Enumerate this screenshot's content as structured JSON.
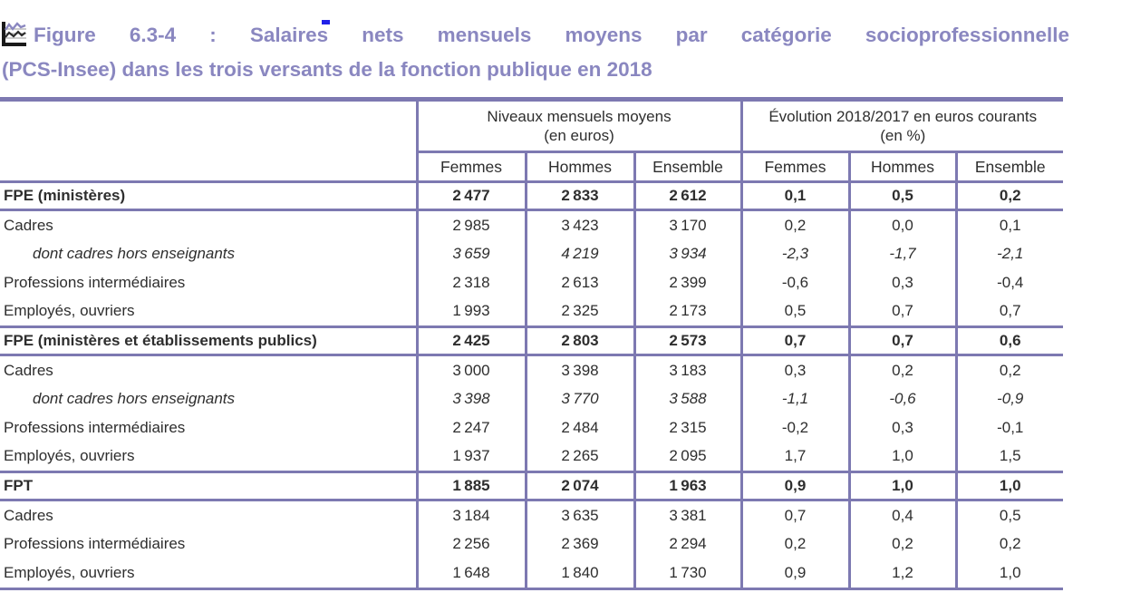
{
  "colors": {
    "border_purple": "#7d79b1",
    "title_purple": "#8a87c0",
    "text_dark": "#2e2e2e",
    "artifact_blue": "#2020e8"
  },
  "figure": {
    "icon": "line-chart-icon",
    "label": "Figure 6.3-4 :",
    "title_line1": "Salaires nets mensuels moyens par catégorie socioprofessionnelle",
    "title_line2": "(PCS-Insee) dans les trois versants de la fonction publique en 2018"
  },
  "table": {
    "col_groups": [
      {
        "title": "Niveaux mensuels moyens",
        "unit": "(en euros)"
      },
      {
        "title": "Évolution 2018/2017 en euros courants",
        "unit": "(en %)"
      }
    ],
    "sub_headers": [
      "Femmes",
      "Hommes",
      "Ensemble",
      "Femmes",
      "Hommes",
      "Ensemble"
    ],
    "rows": [
      {
        "label": "FPE (ministères)",
        "style": "section",
        "values": [
          "2 477",
          "2 833",
          "2 612",
          "0,1",
          "0,5",
          "0,2"
        ]
      },
      {
        "label": "Cadres",
        "style": "normal",
        "values": [
          "2 985",
          "3 423",
          "3 170",
          "0,2",
          "0,0",
          "0,1"
        ]
      },
      {
        "label": "dont cadres hors enseignants",
        "style": "italic",
        "values": [
          "3 659",
          "4 219",
          "3 934",
          "-2,3",
          "-1,7",
          "-2,1"
        ]
      },
      {
        "label": "Professions intermédiaires",
        "style": "normal",
        "values": [
          "2 318",
          "2 613",
          "2 399",
          "-0,6",
          "0,3",
          "-0,4"
        ]
      },
      {
        "label": "Employés, ouvriers",
        "style": "normal",
        "values": [
          "1 993",
          "2 325",
          "2 173",
          "0,5",
          "0,7",
          "0,7"
        ]
      },
      {
        "label": "FPE (ministères et établissements publics)",
        "style": "section",
        "values": [
          "2 425",
          "2 803",
          "2 573",
          "0,7",
          "0,7",
          "0,6"
        ]
      },
      {
        "label": "Cadres",
        "style": "normal",
        "values": [
          "3 000",
          "3 398",
          "3 183",
          "0,3",
          "0,2",
          "0,2"
        ]
      },
      {
        "label": "dont cadres hors enseignants",
        "style": "italic",
        "values": [
          "3 398",
          "3 770",
          "3 588",
          "-1,1",
          "-0,6",
          "-0,9"
        ]
      },
      {
        "label": "Professions intermédiaires",
        "style": "normal",
        "values": [
          "2 247",
          "2 484",
          "2 315",
          "-0,2",
          "0,3",
          "-0,1"
        ]
      },
      {
        "label": "Employés, ouvriers",
        "style": "normal",
        "values": [
          "1 937",
          "2 265",
          "2 095",
          "1,7",
          "1,0",
          "1,5"
        ]
      },
      {
        "label": "FPT",
        "style": "section",
        "values": [
          "1 885",
          "2 074",
          "1 963",
          "0,9",
          "1,0",
          "1,0"
        ]
      },
      {
        "label": "Cadres",
        "style": "normal",
        "values": [
          "3 184",
          "3 635",
          "3 381",
          "0,7",
          "0,4",
          "0,5"
        ]
      },
      {
        "label": "Professions intermédiaires",
        "style": "normal",
        "values": [
          "2 256",
          "2 369",
          "2 294",
          "0,2",
          "0,2",
          "0,2"
        ]
      },
      {
        "label": "Employés, ouvriers",
        "style": "normal",
        "values": [
          "1 648",
          "1 840",
          "1 730",
          "0,9",
          "1,2",
          "1,0"
        ]
      }
    ]
  }
}
